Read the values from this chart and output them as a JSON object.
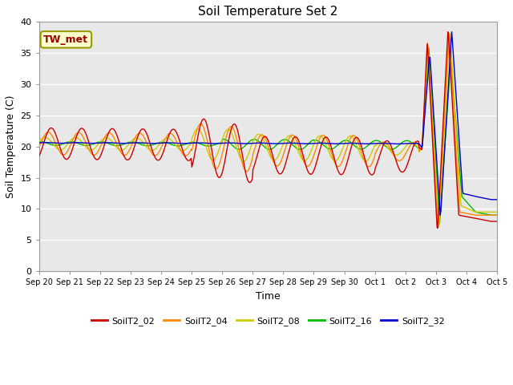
{
  "title": "Soil Temperature Set 2",
  "xlabel": "Time",
  "ylabel": "Soil Temperature (C)",
  "ylim": [
    0,
    40
  ],
  "annotation": "TW_met",
  "annotation_color": "#990000",
  "annotation_bg": "#ffffcc",
  "annotation_edge": "#999900",
  "bg_color": "#e8e8e8",
  "series_colors": {
    "SoilT2_02": "#cc0000",
    "SoilT2_04": "#ff8800",
    "SoilT2_08": "#cccc00",
    "SoilT2_16": "#00bb00",
    "SoilT2_32": "#0000cc"
  },
  "xtick_labels": [
    "Sep 20",
    "Sep 21",
    "Sep 22",
    "Sep 23",
    "Sep 24",
    "Sep 25",
    "Sep 26",
    "Sep 27",
    "Sep 28",
    "Sep 29",
    "Sep 30",
    "Oct 1",
    "Oct 2",
    "Oct 3",
    "Oct 4",
    "Oct 5"
  ],
  "ytick_vals": [
    0,
    5,
    10,
    15,
    20,
    25,
    30,
    35,
    40
  ],
  "legend_labels": [
    "SoilT2_02",
    "SoilT2_04",
    "SoilT2_08",
    "SoilT2_16",
    "SoilT2_32"
  ]
}
